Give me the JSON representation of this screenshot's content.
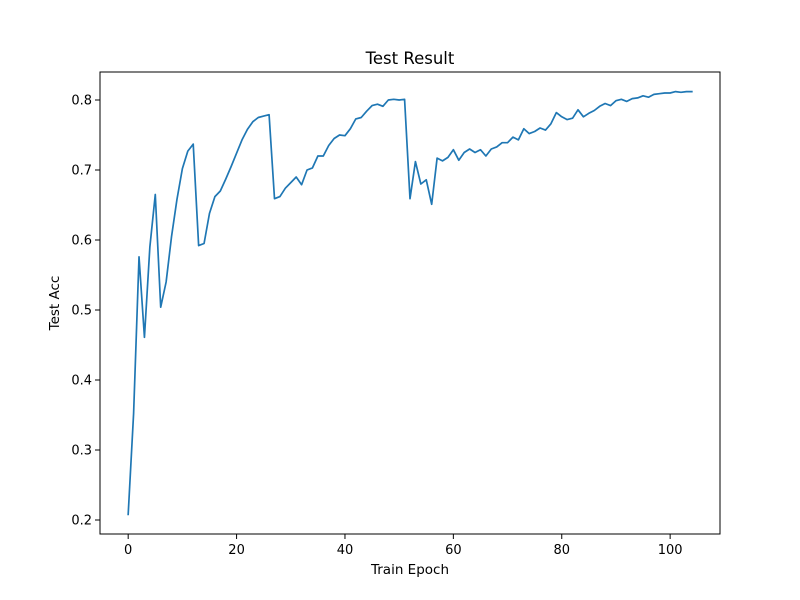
{
  "chart_data": {
    "type": "line",
    "title": "Test Result",
    "xlabel": "Train Epoch",
    "ylabel": "Test Acc",
    "xlim": [
      -5.2,
      109.2
    ],
    "ylim": [
      0.18,
      0.84
    ],
    "xticks": [
      0,
      20,
      40,
      60,
      80,
      100
    ],
    "yticks": [
      0.2,
      0.3,
      0.4,
      0.5,
      0.6,
      0.7,
      0.8
    ],
    "xtick_labels": [
      "0",
      "20",
      "40",
      "60",
      "80",
      "100"
    ],
    "ytick_labels": [
      "0.2",
      "0.3",
      "0.4",
      "0.5",
      "0.6",
      "0.7",
      "0.8"
    ],
    "grid": false,
    "series": [
      {
        "color": "#1f77b4",
        "x": [
          0,
          1,
          2,
          3,
          4,
          5,
          6,
          7,
          8,
          9,
          10,
          11,
          12,
          13,
          14,
          15,
          16,
          17,
          18,
          19,
          20,
          21,
          22,
          23,
          24,
          25,
          26,
          27,
          28,
          29,
          30,
          31,
          32,
          33,
          34,
          35,
          36,
          37,
          38,
          39,
          40,
          41,
          42,
          43,
          44,
          45,
          46,
          47,
          48,
          49,
          50,
          51,
          52,
          53,
          54,
          55,
          56,
          57,
          58,
          59,
          60,
          61,
          62,
          63,
          64,
          65,
          66,
          67,
          68,
          69,
          70,
          71,
          72,
          73,
          74,
          75,
          76,
          77,
          78,
          79,
          80,
          81,
          82,
          83,
          84,
          85,
          86,
          87,
          88,
          89,
          90,
          91,
          92,
          93,
          94,
          95,
          96,
          97,
          98,
          99,
          100,
          101,
          102,
          103,
          104
        ],
        "values": [
          0.208,
          0.352,
          0.576,
          0.461,
          0.59,
          0.665,
          0.504,
          0.54,
          0.605,
          0.658,
          0.702,
          0.727,
          0.737,
          0.592,
          0.595,
          0.638,
          0.662,
          0.67,
          0.687,
          0.705,
          0.724,
          0.743,
          0.758,
          0.769,
          0.775,
          0.777,
          0.779,
          0.659,
          0.662,
          0.674,
          0.682,
          0.69,
          0.679,
          0.7,
          0.703,
          0.72,
          0.72,
          0.735,
          0.745,
          0.75,
          0.749,
          0.759,
          0.773,
          0.775,
          0.784,
          0.792,
          0.794,
          0.791,
          0.8,
          0.801,
          0.8,
          0.801,
          0.659,
          0.712,
          0.68,
          0.686,
          0.651,
          0.717,
          0.713,
          0.718,
          0.729,
          0.714,
          0.725,
          0.73,
          0.725,
          0.729,
          0.72,
          0.73,
          0.733,
          0.739,
          0.739,
          0.747,
          0.743,
          0.759,
          0.752,
          0.755,
          0.76,
          0.757,
          0.766,
          0.782,
          0.776,
          0.772,
          0.774,
          0.786,
          0.776,
          0.781,
          0.785,
          0.791,
          0.795,
          0.792,
          0.799,
          0.801,
          0.798,
          0.802,
          0.803,
          0.806,
          0.804,
          0.808,
          0.809,
          0.81,
          0.81,
          0.812,
          0.811,
          0.812,
          0.812
        ]
      }
    ]
  }
}
